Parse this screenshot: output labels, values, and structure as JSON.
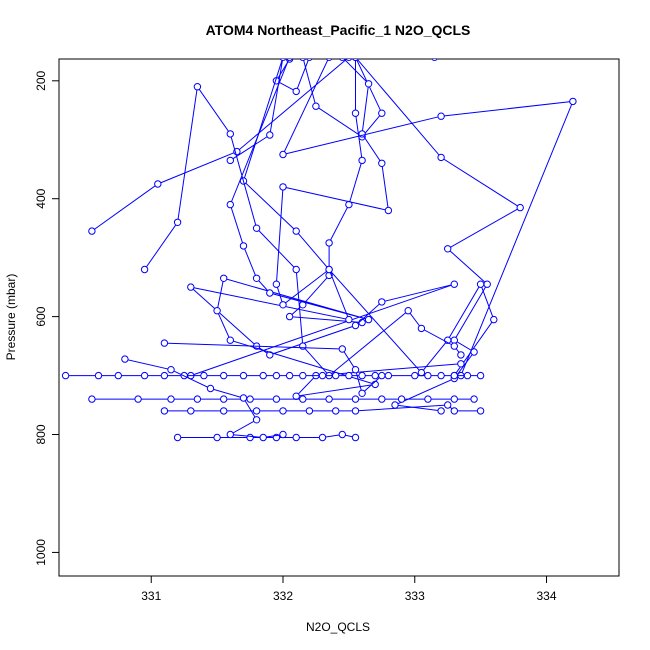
{
  "chart_data": {
    "type": "line",
    "title": "ATOM4 Northeast_Pacific_1 N2O_QCLS",
    "xlabel": "N2O_QCLS",
    "ylabel": "Pressure (mbar)",
    "xlim": [
      330.3,
      334.55
    ],
    "ylim": [
      1040,
      163
    ],
    "y_reversed": true,
    "x_ticks": [
      331,
      332,
      333,
      334
    ],
    "y_ticks": [
      200,
      400,
      600,
      800,
      1000
    ],
    "grid": false,
    "legend": "none",
    "color": "#0000ff",
    "series": [
      {
        "points": [
          [
            332.2,
            160
          ],
          [
            332.1,
            218
          ],
          [
            331.95,
            200
          ],
          [
            332.05,
            163
          ],
          [
            332.15,
            160
          ],
          [
            332.25,
            243
          ],
          [
            332.6,
            295
          ],
          [
            332.75,
            255
          ],
          [
            332.55,
            160
          ],
          [
            332.55,
            255
          ],
          [
            332.6,
            335
          ],
          [
            332.5,
            410
          ],
          [
            332.35,
            475
          ],
          [
            332.35,
            530
          ],
          [
            332.15,
            580
          ],
          [
            332.05,
            600
          ],
          [
            332.6,
            610
          ]
        ]
      },
      {
        "points": [
          [
            331.6,
            335
          ],
          [
            331.9,
            292
          ],
          [
            332.0,
            160
          ],
          [
            331.7,
            370
          ],
          [
            332.1,
            455
          ],
          [
            332.35,
            520
          ],
          [
            332.5,
            605
          ],
          [
            331.3,
            550
          ],
          [
            331.8,
            650
          ],
          [
            331.9,
            665
          ],
          [
            332.55,
            615
          ],
          [
            332.75,
            575
          ],
          [
            333.3,
            545
          ],
          [
            331.3,
            700
          ]
        ]
      },
      {
        "points": [
          [
            332.45,
            160
          ],
          [
            332.65,
            205
          ],
          [
            332.6,
            290
          ],
          [
            332.75,
            340
          ],
          [
            332.8,
            420
          ],
          [
            332.0,
            380
          ],
          [
            331.95,
            545
          ],
          [
            332.0,
            580
          ],
          [
            332.35,
            520
          ],
          [
            333.05,
            695
          ],
          [
            333.25,
            640
          ],
          [
            333.5,
            545
          ],
          [
            333.6,
            605
          ],
          [
            333.3,
            700
          ]
        ]
      },
      {
        "points": [
          [
            332.05,
            160
          ],
          [
            331.6,
            410
          ],
          [
            331.7,
            480
          ],
          [
            331.8,
            535
          ],
          [
            331.9,
            560
          ],
          [
            332.65,
            605
          ],
          [
            331.55,
            535
          ],
          [
            331.5,
            590
          ],
          [
            331.6,
            640
          ],
          [
            332.7,
            715
          ],
          [
            332.1,
            735
          ],
          [
            332.25,
            700
          ],
          [
            333.35,
            680
          ]
        ]
      },
      {
        "points": [
          [
            330.55,
            455
          ],
          [
            331.05,
            375
          ],
          [
            331.65,
            320
          ],
          [
            332.5,
            160
          ],
          [
            332.35,
            160
          ],
          [
            332.0,
            325
          ],
          [
            333.2,
            260
          ],
          [
            334.2,
            235
          ],
          [
            333.35,
            700
          ]
        ]
      },
      {
        "points": [
          [
            333.15,
            160
          ],
          [
            332.55,
            160
          ],
          [
            333.2,
            330
          ],
          [
            333.8,
            415
          ],
          [
            333.25,
            485
          ],
          [
            333.55,
            545
          ],
          [
            333.3,
            640
          ],
          [
            333.45,
            660
          ],
          [
            333.3,
            705
          ],
          [
            332.85,
            750
          ],
          [
            333.2,
            760
          ]
        ]
      },
      {
        "points": [
          [
            330.95,
            520
          ],
          [
            331.2,
            440
          ],
          [
            331.35,
            210
          ],
          [
            331.6,
            290
          ],
          [
            331.8,
            450
          ],
          [
            332.1,
            520
          ],
          [
            332.15,
            650
          ],
          [
            332.35,
            700
          ],
          [
            332.95,
            590
          ],
          [
            333.05,
            620
          ],
          [
            333.3,
            650
          ],
          [
            333.35,
            665
          ]
        ]
      },
      {
        "points": [
          [
            330.35,
            700
          ],
          [
            330.6,
            700
          ],
          [
            330.75,
            700
          ],
          [
            330.95,
            700
          ],
          [
            331.1,
            700
          ],
          [
            331.25,
            700
          ],
          [
            331.4,
            700
          ],
          [
            331.55,
            700
          ],
          [
            331.7,
            700
          ],
          [
            331.85,
            700
          ],
          [
            331.95,
            700
          ],
          [
            332.05,
            700
          ],
          [
            332.15,
            700
          ],
          [
            332.3,
            700
          ],
          [
            332.4,
            700
          ],
          [
            332.5,
            700
          ],
          [
            332.6,
            700
          ],
          [
            332.7,
            700
          ],
          [
            332.8,
            700
          ],
          [
            333.0,
            700
          ],
          [
            333.1,
            700
          ],
          [
            333.2,
            700
          ],
          [
            333.3,
            700
          ],
          [
            333.4,
            700
          ],
          [
            333.5,
            700
          ]
        ]
      },
      {
        "points": [
          [
            330.55,
            740
          ],
          [
            330.9,
            740
          ],
          [
            331.15,
            740
          ],
          [
            331.35,
            740
          ],
          [
            331.55,
            740
          ],
          [
            331.75,
            740
          ],
          [
            331.95,
            740
          ],
          [
            332.15,
            740
          ],
          [
            332.35,
            740
          ],
          [
            332.55,
            740
          ],
          [
            332.75,
            740
          ],
          [
            332.9,
            740
          ],
          [
            333.1,
            740
          ],
          [
            333.3,
            740
          ],
          [
            333.45,
            740
          ]
        ]
      },
      {
        "points": [
          [
            331.1,
            760
          ],
          [
            331.3,
            760
          ],
          [
            331.55,
            760
          ],
          [
            331.8,
            760
          ],
          [
            332.0,
            760
          ],
          [
            332.2,
            760
          ],
          [
            332.4,
            760
          ],
          [
            332.55,
            760
          ],
          [
            333.25,
            750
          ],
          [
            333.3,
            760
          ],
          [
            333.5,
            760
          ]
        ]
      },
      {
        "points": [
          [
            331.2,
            805
          ],
          [
            331.5,
            805
          ],
          [
            331.75,
            805
          ],
          [
            331.95,
            805
          ],
          [
            332.1,
            805
          ],
          [
            332.3,
            805
          ],
          [
            332.45,
            800
          ],
          [
            332.55,
            805
          ]
        ]
      },
      {
        "points": [
          [
            330.8,
            672
          ],
          [
            331.15,
            690
          ],
          [
            331.45,
            722
          ],
          [
            331.7,
            738
          ],
          [
            331.8,
            775
          ],
          [
            331.6,
            800
          ],
          [
            331.85,
            805
          ],
          [
            332.0,
            800
          ]
        ]
      },
      {
        "points": [
          [
            331.1,
            645
          ],
          [
            332.45,
            655
          ],
          [
            332.55,
            690
          ],
          [
            332.6,
            730
          ],
          [
            332.75,
            700
          ]
        ]
      }
    ]
  }
}
